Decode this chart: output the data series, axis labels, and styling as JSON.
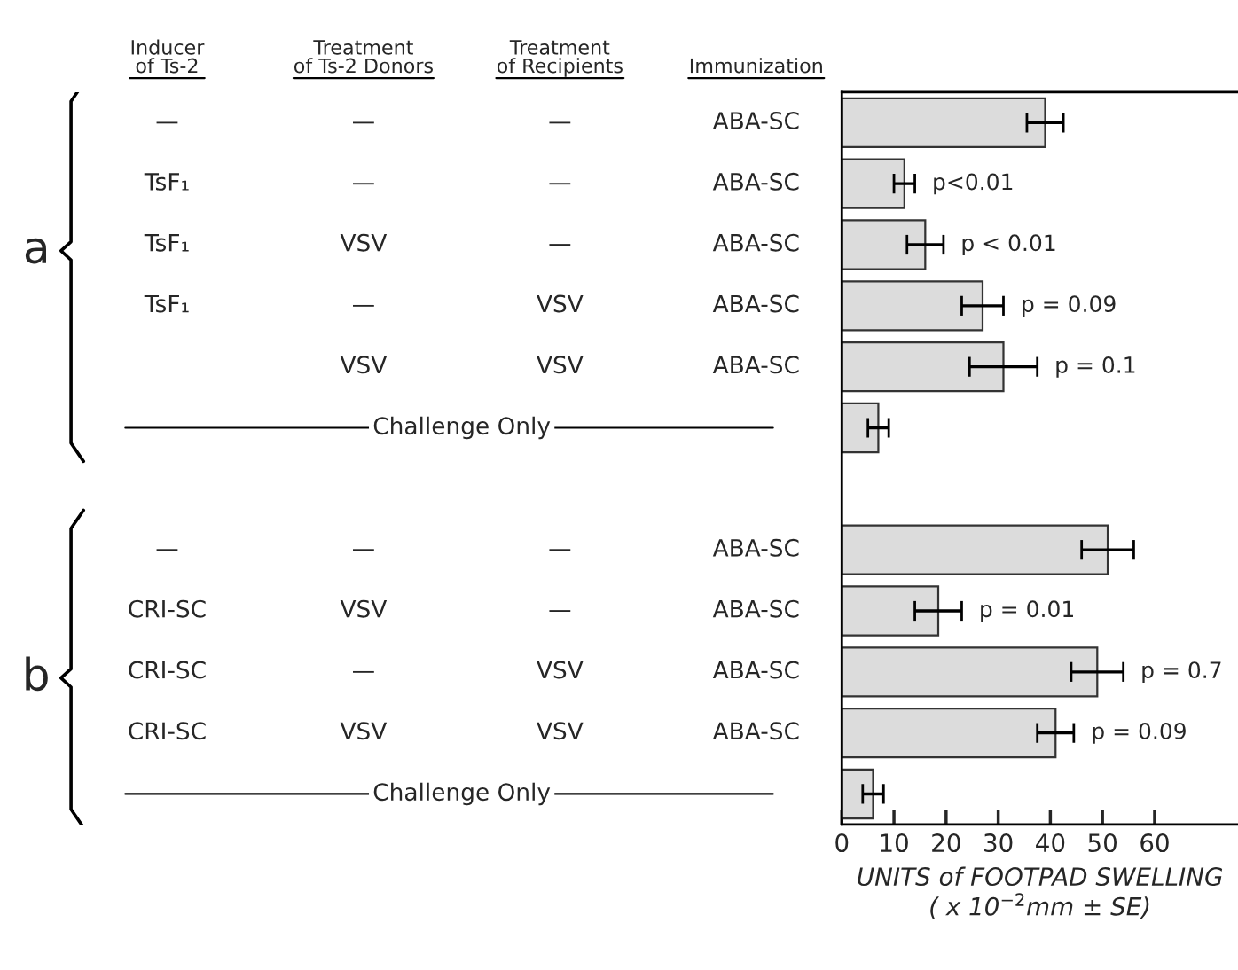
{
  "chart_data": [
    {
      "type": "other",
      "categories": [
        "Inducer\nof Ts-2",
        "Treatment\nof Ts-2 Donors",
        "Treatment\nof Recipients",
        "Immunization"
      ],
      "y_categories": [
        null,
        null,
        "a",
        null,
        null,
        null,
        null,
        null,
        null,
        "b",
        null,
        null
      ],
      "cells": [
        [
          "—",
          "—",
          "—",
          "ABA-SC",
          null
        ],
        [
          "TsF₁",
          "—",
          "—",
          "ABA-SC",
          "p<0.01"
        ],
        [
          "TsF₁",
          "VSV",
          "—",
          "ABA-SC",
          "p < 0.01"
        ],
        [
          "TsF₁",
          "—",
          "VSV",
          "ABA-SC",
          "p = 0.09"
        ],
        [
          null,
          "VSV",
          "VSV",
          "ABA-SC",
          "p = 0.1"
        ],
        [
          null,
          "Challenge Only",
          null,
          null,
          null
        ],
        [
          null,
          null,
          null,
          null,
          null
        ],
        [
          "—",
          "—",
          "—",
          "ABA-SC",
          null
        ],
        [
          "CRI-SC",
          "VSV",
          "—",
          "ABA-SC",
          "p = 0.01"
        ],
        [
          "CRI-SC",
          "—",
          "VSV",
          "ABA-SC",
          "p = 0.7"
        ],
        [
          "CRI-SC",
          "VSV",
          "VSV",
          "ABA-SC",
          "p = 0.09"
        ],
        [
          null,
          "Challenge Only",
          null,
          null,
          null
        ]
      ]
    },
    {
      "type": "bar",
      "orientation": "horizontal",
      "categories": [
        null,
        null,
        null,
        null,
        null,
        null,
        null,
        null,
        null,
        null,
        null,
        null
      ],
      "values": [
        39,
        12,
        16,
        27,
        31,
        7,
        null,
        51,
        18.5,
        49,
        41,
        6
      ],
      "errors": [
        3.5,
        2,
        3.5,
        4,
        6.5,
        2,
        null,
        5,
        4.5,
        5,
        3.5,
        2
      ],
      "color": "#dcdcdc",
      "xlim": [
        0,
        76
      ],
      "xticks": [
        0,
        10,
        20,
        30,
        40,
        50,
        60
      ],
      "xlabel": "UNITS of FOOTPAD SWELLING\n( x 10$^{−2}$mm ± SE)",
      "tick_labels": "x"
    }
  ]
}
